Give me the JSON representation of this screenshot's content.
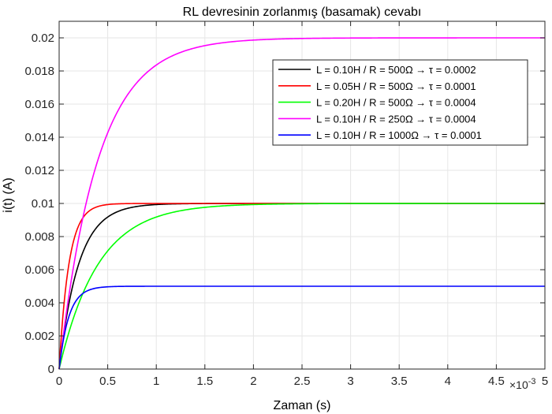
{
  "chart_data": {
    "type": "line",
    "title": "RL devresinin zorlanmış (basamak) cevabı",
    "xlabel": "Zaman (s)",
    "ylabel": "i(t) (A)",
    "x_exponent_base": "×10",
    "x_exponent_power": "-3",
    "xlim": [
      0,
      5
    ],
    "ylim": [
      0,
      0.021
    ],
    "x_ticks": [
      "0",
      "0.5",
      "1",
      "1.5",
      "2",
      "2.5",
      "3",
      "3.5",
      "4",
      "4.5",
      "5"
    ],
    "y_ticks": [
      "0",
      "0.002",
      "0.004",
      "0.006",
      "0.008",
      "0.01",
      "0.012",
      "0.014",
      "0.016",
      "0.018",
      "0.02"
    ],
    "grid": true,
    "legend_position": "top-right",
    "series": [
      {
        "name": "L = 0.10H  /  R = 500Ω → τ = 0.0002",
        "color": "#000000",
        "final": 0.01,
        "tau": 0.2
      },
      {
        "name": "L = 0.05H  /  R = 500Ω  → τ = 0.0001",
        "color": "#ff0000",
        "final": 0.01,
        "tau": 0.1
      },
      {
        "name": "L = 0.20H  /  R = 500Ω  → τ = 0.0004",
        "color": "#00ff00",
        "final": 0.01,
        "tau": 0.4
      },
      {
        "name": "L = 0.10H  /  R = 250Ω  → τ = 0.0004",
        "color": "#ff00ff",
        "final": 0.02,
        "tau": 0.4
      },
      {
        "name": "L = 0.10H  /  R = 1000Ω  → τ = 0.0001",
        "color": "#0000ff",
        "final": 0.005,
        "tau": 0.1
      }
    ]
  }
}
